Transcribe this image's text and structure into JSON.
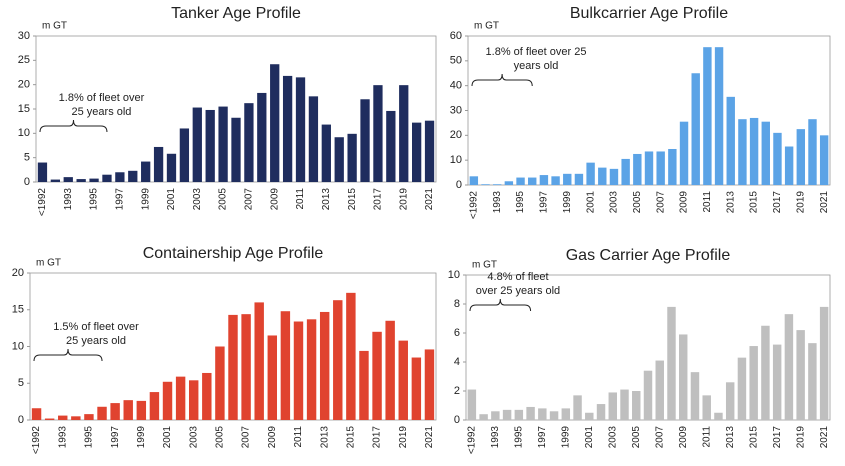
{
  "chart_data": [
    {
      "type": "bar",
      "title": "Tanker Age Profile",
      "y_label": "m GT",
      "color": "#1f2d5e",
      "grid": false,
      "annotation": [
        "1.8% of fleet over",
        "25 years old"
      ],
      "categories": [
        "<1992",
        null,
        "1993",
        null,
        "1995",
        null,
        "1997",
        null,
        "1999",
        null,
        "2001",
        null,
        "2003",
        null,
        "2005",
        null,
        "2007",
        null,
        "2009",
        null,
        "2011",
        null,
        "2013",
        null,
        "2015",
        null,
        "2017",
        null,
        "2019",
        null,
        "2021"
      ],
      "values": [
        4.0,
        0.5,
        1.0,
        0.6,
        0.7,
        1.5,
        2.0,
        2.3,
        4.2,
        7.2,
        5.8,
        11.0,
        15.3,
        14.8,
        15.5,
        13.2,
        16.2,
        18.3,
        24.2,
        21.8,
        21.5,
        17.6,
        11.8,
        9.2,
        9.9,
        17.0,
        19.9,
        14.6,
        19.9,
        12.2,
        12.6
      ],
      "ylim": [
        0,
        30
      ],
      "yticks": [
        0,
        5,
        10,
        15,
        20,
        25,
        30
      ]
    },
    {
      "type": "bar",
      "title": "Bulkcarrier Age Profile",
      "y_label": "m GT",
      "color": "#5ba3e6",
      "grid": false,
      "annotation": [
        "1.8% of fleet over 25",
        "years old"
      ],
      "categories": [
        "<1992",
        null,
        "1993",
        null,
        "1995",
        null,
        "1997",
        null,
        "1999",
        null,
        "2001",
        null,
        "2003",
        null,
        "2005",
        null,
        "2007",
        null,
        "2009",
        null,
        "2011",
        null,
        "2013",
        null,
        "2015",
        null,
        "2017",
        null,
        "2019",
        null,
        "2021"
      ],
      "values": [
        3.5,
        0.3,
        0.3,
        1.5,
        3.0,
        3.0,
        4.0,
        3.5,
        4.5,
        4.5,
        9.0,
        7.0,
        6.5,
        10.5,
        12.5,
        13.5,
        13.5,
        14.5,
        25.5,
        45.0,
        55.5,
        55.5,
        35.5,
        26.5,
        27.0,
        25.5,
        21.0,
        15.5,
        22.5,
        26.5,
        20.0
      ],
      "ylim": [
        0,
        60
      ],
      "yticks": [
        0,
        10,
        20,
        30,
        40,
        50,
        60
      ]
    },
    {
      "type": "bar",
      "title": "Containership Age Profile",
      "y_label": "m GT",
      "color": "#e0432f",
      "grid": false,
      "annotation": [
        "1.5% of fleet over",
        "25 years old"
      ],
      "categories": [
        "<1992",
        null,
        "1993",
        null,
        "1995",
        null,
        "1997",
        null,
        "1999",
        null,
        "2001",
        null,
        "2003",
        null,
        "2005",
        null,
        "2007",
        null,
        "2009",
        null,
        "2011",
        null,
        "2013",
        null,
        "2015",
        null,
        "2017",
        null,
        "2019",
        null,
        "2021"
      ],
      "values": [
        1.6,
        0.2,
        0.6,
        0.5,
        0.8,
        1.8,
        2.3,
        2.7,
        2.6,
        3.8,
        5.2,
        5.9,
        5.4,
        6.4,
        10.0,
        14.3,
        14.4,
        16.0,
        11.5,
        14.8,
        13.4,
        13.7,
        14.7,
        16.3,
        17.3,
        9.4,
        12.0,
        13.5,
        10.8,
        8.5,
        9.6
      ],
      "ylim": [
        0,
        20
      ],
      "yticks": [
        0,
        5,
        10,
        15,
        20
      ]
    },
    {
      "type": "bar",
      "title": "Gas Carrier Age Profile",
      "y_label": "m GT",
      "color": "#bfbfbf",
      "grid": false,
      "annotation": [
        "4.8% of fleet",
        "over 25 years old"
      ],
      "categories": [
        "<1992",
        null,
        "1993",
        null,
        "1995",
        null,
        "1997",
        null,
        "1999",
        null,
        "2001",
        null,
        "2003",
        null,
        "2005",
        null,
        "2007",
        null,
        "2009",
        null,
        "2011",
        null,
        "2013",
        null,
        "2015",
        null,
        "2017",
        null,
        "2019",
        null,
        "2021"
      ],
      "values": [
        2.1,
        0.4,
        0.6,
        0.7,
        0.7,
        0.9,
        0.8,
        0.6,
        0.8,
        1.7,
        0.5,
        1.1,
        1.9,
        2.1,
        2.0,
        3.4,
        4.1,
        7.8,
        5.9,
        3.3,
        1.7,
        0.5,
        2.6,
        4.3,
        5.1,
        6.5,
        5.2,
        7.3,
        6.2,
        5.3,
        7.8
      ],
      "ylim": [
        0,
        10
      ],
      "yticks": [
        0,
        2,
        4,
        6,
        8,
        10
      ]
    }
  ]
}
